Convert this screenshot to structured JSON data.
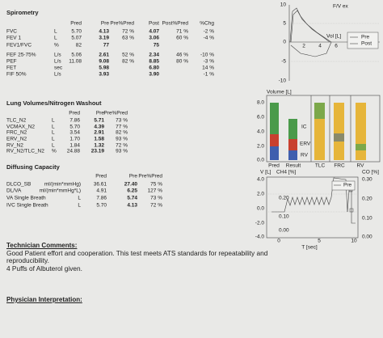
{
  "spirometry": {
    "title": "Spirometry",
    "columns": [
      "Pred",
      "Pre",
      "Pre%Pred",
      "Post",
      "Post%Pred",
      "%Chg"
    ],
    "rows": [
      {
        "cells": [
          "FVC",
          "L",
          "5.70",
          "4.13",
          "72 %",
          "4.07",
          "71 %",
          "-2 %"
        ],
        "value_color": "#d0312d"
      },
      {
        "cells": [
          "FEV 1",
          "L",
          "5.07",
          "3.19",
          "63 %",
          "3.06",
          "60 %",
          "-4 %"
        ],
        "value_color": "#d0312d"
      },
      {
        "cells": [
          "FEV1/FVC",
          "%",
          "82",
          "77",
          null,
          "75",
          null,
          null
        ]
      },
      {
        "cells": [
          "FEF 25-75%",
          "L/s",
          "5.06",
          "2.61",
          "52 %",
          "2.34",
          "46 %",
          "-10 %"
        ],
        "value_color": "#d0312d"
      },
      {
        "cells": [
          "PEF",
          "L/s",
          "11.08",
          "9.08",
          "82 %",
          "8.85",
          "80 %",
          "-3 %"
        ]
      },
      {
        "cells": [
          "FET",
          "sec",
          null,
          "5.98",
          null,
          "6.80",
          null,
          "14 %"
        ]
      },
      {
        "cells": [
          "FIF 50%",
          "L/s",
          null,
          "3.93",
          null,
          "3.90",
          null,
          "-1 %"
        ]
      }
    ]
  },
  "lung_volumes": {
    "title": "Lung Volumes/Nitrogen Washout",
    "columns": [
      "Pred",
      "Pre",
      "Pre%Pred"
    ],
    "rows": [
      {
        "cells": [
          "TLC_N2",
          "L",
          "7.86",
          "5.71",
          "73 %"
        ]
      },
      {
        "cells": [
          "VCMAX_N2",
          "L",
          "5.70",
          "4.39",
          "77 %"
        ],
        "value_color": "#d0312d"
      },
      {
        "cells": [
          "FRC_N2",
          "L",
          "3.54",
          "2.91",
          "82 %"
        ]
      },
      {
        "cells": [
          "ERV_N2",
          "L",
          "1.70",
          "1.58",
          "93 %"
        ]
      },
      {
        "cells": [
          "RV_N2",
          "L",
          "1.84",
          "1.32",
          "72 %"
        ]
      },
      {
        "cells": [
          "RV_N2/TLC_N2",
          "%",
          "24.88",
          "23.19",
          "93 %"
        ]
      }
    ]
  },
  "diffusing": {
    "title": "Diffusing Capacity",
    "columns": [
      "Pred",
      "Pre",
      "Pre%Pred"
    ],
    "rows": [
      {
        "cells": [
          "DLCO_SB",
          "ml/(min*mmHg)",
          "36.61",
          "27.40",
          "75 %"
        ],
        "value_color": "#d0312d"
      },
      {
        "cells": [
          "DL/VA",
          "ml/(min*mmHg*L)",
          "4.91",
          "6.25",
          "127 %"
        ]
      },
      {
        "cells": [
          "VA Single Breath",
          "L",
          "7.86",
          "5.74",
          "73 %"
        ]
      },
      {
        "cells": [
          "IVC Single Breath",
          "L",
          "5.70",
          "4.13",
          "72 %"
        ],
        "value_color": "#d0312d"
      }
    ]
  },
  "technician": {
    "title": "Technician Comments:",
    "lines": [
      "Good Patient effort and cooperation. This test meets ATS standards for repeatability and reproducibility.",
      "4 Puffs of Albuterol given."
    ]
  },
  "physician": {
    "title": "Physician Interpretation:"
  },
  "flow_volume": {
    "title": "F/V ex",
    "x_label": "Vol [L]",
    "yticks": [
      "10",
      "5",
      "0",
      "-5",
      "-10"
    ],
    "xticks": [
      "2",
      "4",
      "6"
    ],
    "legend": [
      "Pre",
      "Post"
    ]
  },
  "volume_bars": {
    "y_label": "Volume [L]",
    "yticks": [
      "8.0",
      "6.0",
      "4.0",
      "2.0",
      "0.0"
    ],
    "categories": [
      "Pred",
      "Result",
      "TLC",
      "FRC",
      "RV"
    ],
    "segments": [
      "IC",
      "ERV",
      "RV"
    ]
  },
  "diffusion": {
    "y_labels": [
      "V [L]",
      "CH4 [%]",
      "CO [%]"
    ],
    "left_ticks": [
      "4.0",
      "2.0",
      "0.0",
      "-2.0",
      "-4.0"
    ],
    "mid_ticks": [
      "0.20",
      "0.10",
      "0.00"
    ],
    "right_ticks": [
      "0.30",
      "0.20",
      "0.10",
      "0.00"
    ],
    "x_label": "T [sec]",
    "xticks": [
      "0",
      "5",
      "10"
    ],
    "legend": "Pre"
  }
}
